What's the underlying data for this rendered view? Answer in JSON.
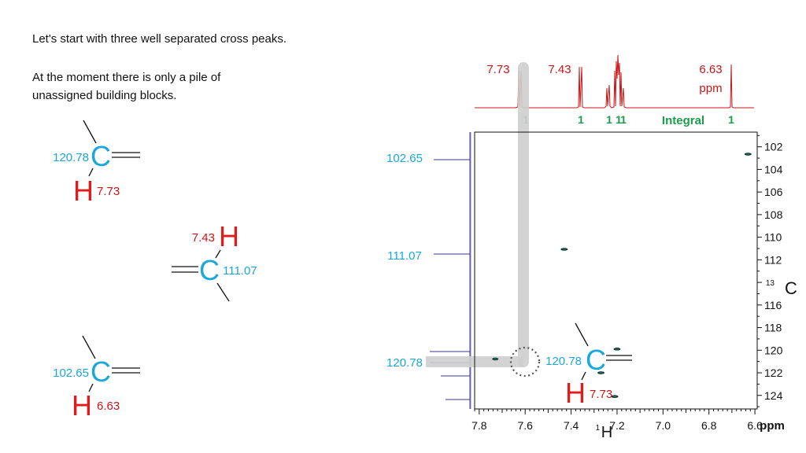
{
  "slide": {
    "intro_line1": "Let's start with three well separated cross peaks.",
    "intro_line2": "At the moment there is only a pile of",
    "intro_line3": "unassigned building blocks."
  },
  "fragments": [
    {
      "c_label": "C",
      "c_shift": "120.78",
      "h_label": "H",
      "h_shift": "7.73"
    },
    {
      "c_label": "C",
      "c_shift": "111.07",
      "h_label": "H",
      "h_shift": "7.43"
    },
    {
      "c_label": "C",
      "c_shift": "102.65",
      "h_label": "H",
      "h_shift": "6.63"
    }
  ],
  "spectrum": {
    "h_peak_labels": [
      "7.73",
      "7.43",
      "6.63"
    ],
    "h_unit": "ppm",
    "integrals": [
      "1",
      "1",
      "1",
      "1",
      "1",
      "1"
    ],
    "integral_label": "Integral",
    "c_peak_labels": [
      "102.65",
      "111.07",
      "120.78"
    ],
    "highlight_c_label": "C",
    "highlight_c_shift": "120.78",
    "highlight_h_label": "H",
    "highlight_h_shift": "7.73",
    "colors": {
      "red": "#cc1414",
      "cyan": "#1aa7d9",
      "green": "#1a9c4a",
      "blue": "#3a3a9a",
      "grey": "#cfcfcf"
    }
  },
  "chart_data": {
    "type": "scatter",
    "xlabel_prefix": "1",
    "xlabel": "H",
    "ylabel_prefix": "13",
    "ylabel": "C",
    "x_unit": "ppm",
    "x_ticks": [
      "7.8",
      "7.6",
      "7.4",
      "7.2",
      "7.0",
      "6.8",
      "6.6"
    ],
    "y_ticks": [
      "102",
      "104",
      "106",
      "108",
      "110",
      "112",
      "116",
      "118",
      "120",
      "122",
      "124"
    ],
    "xlim": [
      7.82,
      6.59
    ],
    "ylim": [
      100.7,
      125.2
    ],
    "cross_peaks": [
      {
        "x": 6.63,
        "y": 102.65
      },
      {
        "x": 7.43,
        "y": 111.07
      },
      {
        "x": 7.73,
        "y": 120.78
      },
      {
        "x": 7.2,
        "y": 119.9
      },
      {
        "x": 7.27,
        "y": 122.0
      },
      {
        "x": 7.21,
        "y": 124.1
      }
    ]
  }
}
